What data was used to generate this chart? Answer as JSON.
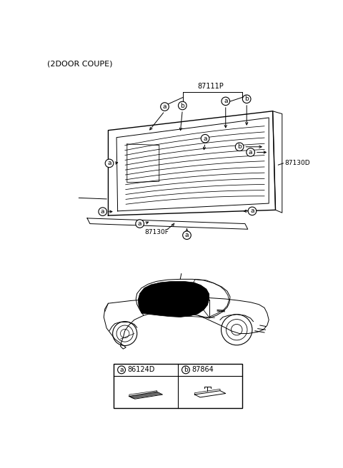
{
  "title": "(2DOOR COUPE)",
  "bg_color": "#ffffff",
  "part_87111P": "87111P",
  "part_87130D": "87130D",
  "part_87130F": "87130F",
  "legend_a_code": "86124D",
  "legend_b_code": "87864",
  "figsize": [
    4.8,
    6.56
  ],
  "dpi": 100
}
